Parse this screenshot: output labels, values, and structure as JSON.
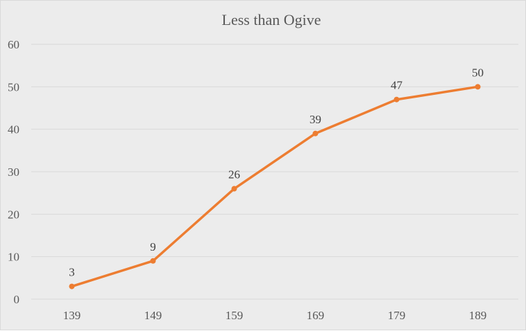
{
  "chart_data": {
    "type": "line",
    "title": "Less than Ogive",
    "xlabel": "",
    "ylabel": "",
    "categories": [
      "139",
      "149",
      "159",
      "169",
      "179",
      "189"
    ],
    "series": [
      {
        "values": [
          3,
          9,
          26,
          39,
          47,
          50
        ],
        "color": "#ed7d31"
      }
    ],
    "ylim": [
      0,
      60
    ],
    "yticks": [
      0,
      10,
      20,
      30,
      40,
      50,
      60
    ],
    "grid": true,
    "data_labels": true,
    "legend": "none"
  }
}
